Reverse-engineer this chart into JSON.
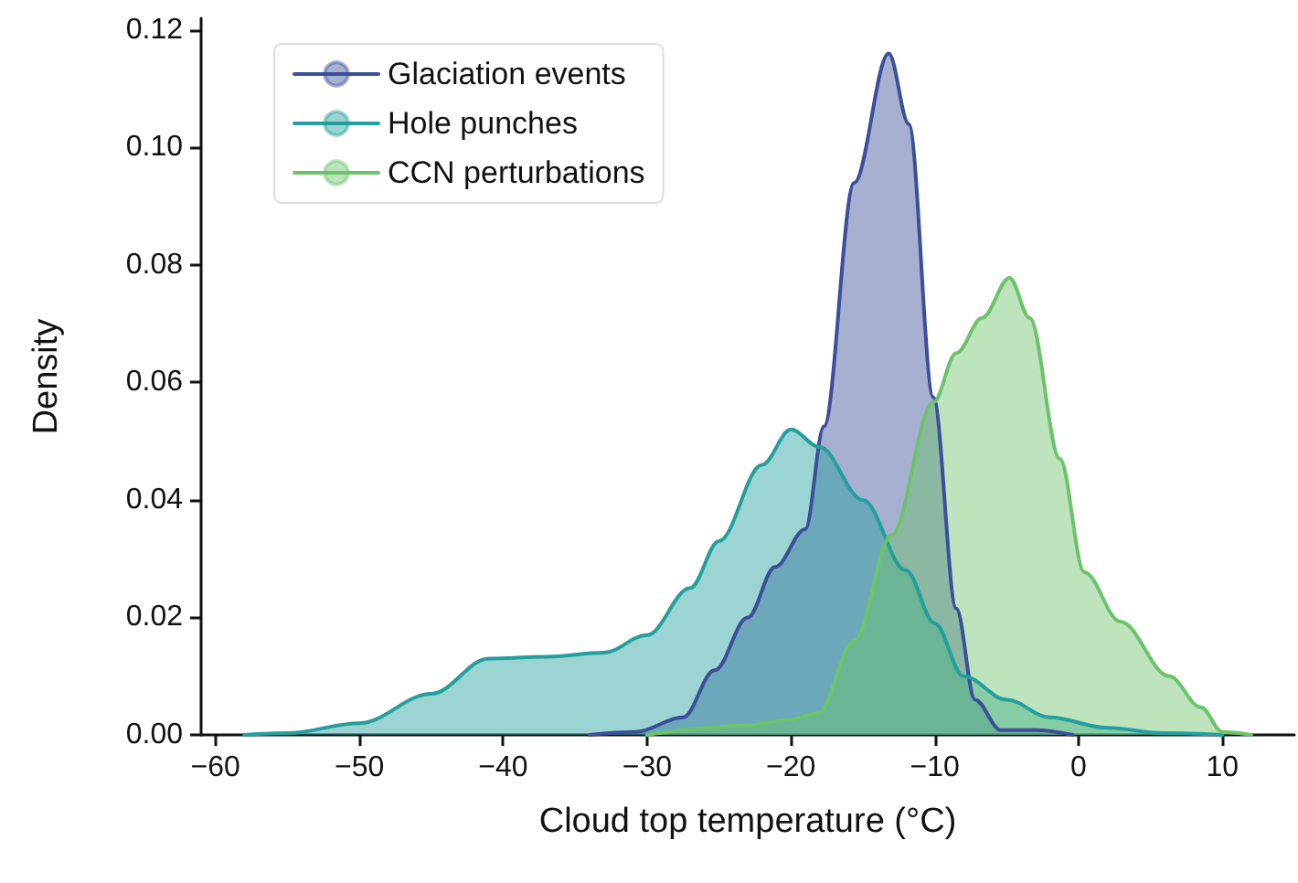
{
  "chart_data": {
    "type": "area",
    "xlabel": "Cloud top temperature (°C)",
    "ylabel": "Density",
    "xlim": [
      -61,
      15
    ],
    "xticks": [
      {
        "value": -60,
        "label": "−60"
      },
      {
        "value": -50,
        "label": "−50"
      },
      {
        "value": -40,
        "label": "−40"
      },
      {
        "value": -30,
        "label": "−30"
      },
      {
        "value": -20,
        "label": "−20"
      },
      {
        "value": -10,
        "label": "−10"
      },
      0,
      10
    ],
    "ylim": [
      0,
      0.122
    ],
    "yticks": [
      {
        "value": 0,
        "label": "0.00"
      },
      0.02,
      0.04,
      0.06,
      0.08,
      {
        "value": 0.1,
        "label": "0.10"
      },
      0.12
    ],
    "grid": false,
    "legend": "top left",
    "marker": "none",
    "series": [
      {
        "name": "Glaciation events",
        "color": "#3b4f9a",
        "x": [
          -34,
          -30.8,
          -27.5,
          -25.3,
          -23,
          -21.1,
          -19,
          -17.7,
          -15.6,
          -13.2,
          -11.8,
          -10.1,
          -8.5,
          -7.2,
          -5.4,
          -3,
          -0.4
        ],
        "values": [
          0,
          0.0005,
          0.003,
          0.011,
          0.02,
          0.0286,
          0.035,
          0.0525,
          0.094,
          0.116,
          0.104,
          0.0575,
          0.0215,
          0.006,
          0.0008,
          0.0008,
          0
        ]
      },
      {
        "name": "Hole punches",
        "color": "#23a09e",
        "x": [
          -58,
          -55,
          -50,
          -45,
          -41,
          -37,
          -33,
          -30,
          -27,
          -25,
          -22,
          -20,
          -18,
          -15,
          -12,
          -10,
          -8,
          -5,
          -2,
          2,
          6,
          10
        ],
        "values": [
          0,
          0.0003,
          0.002,
          0.007,
          0.013,
          0.0133,
          0.014,
          0.017,
          0.025,
          0.033,
          0.046,
          0.052,
          0.049,
          0.04,
          0.028,
          0.019,
          0.01,
          0.006,
          0.003,
          0.0012,
          0.0003,
          0
        ]
      },
      {
        "name": "CCN perturbations",
        "color": "#6cc36a",
        "x": [
          -30,
          -23.2,
          -20.3,
          -18.1,
          -15.6,
          -13,
          -10.1,
          -8.5,
          -6.7,
          -4.8,
          -3.4,
          -1.3,
          0.4,
          2.9,
          6.3,
          8.5,
          10,
          12
        ],
        "values": [
          0,
          0.0016,
          0.0025,
          0.0037,
          0.016,
          0.034,
          0.0566,
          0.065,
          0.071,
          0.0778,
          0.071,
          0.047,
          0.0277,
          0.0193,
          0.01,
          0.0047,
          0.0005,
          0
        ]
      }
    ]
  }
}
